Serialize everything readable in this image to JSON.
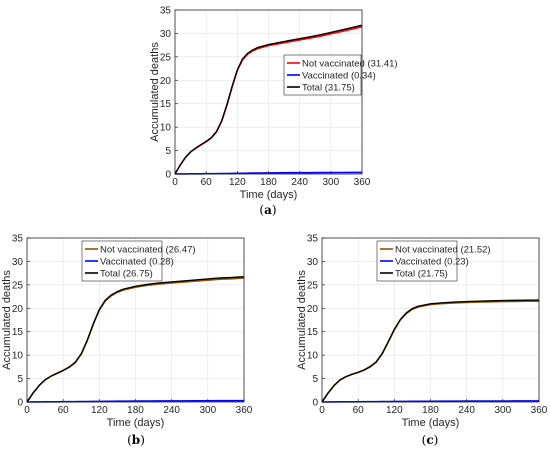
{
  "chart_data": [
    {
      "type": "line",
      "caption": "(a)",
      "xlabel": "Time (days)",
      "ylabel": "Accumulated deaths",
      "xlim": [
        0,
        360
      ],
      "ylim": [
        0,
        35
      ],
      "xticks": [
        0,
        60,
        120,
        180,
        240,
        300,
        360
      ],
      "yticks": [
        0,
        5,
        10,
        15,
        20,
        25,
        30,
        35
      ],
      "grid": true,
      "legend": "middle-right",
      "x": [
        0,
        10,
        20,
        30,
        40,
        50,
        60,
        70,
        80,
        90,
        100,
        110,
        120,
        130,
        140,
        150,
        160,
        180,
        200,
        220,
        240,
        260,
        280,
        300,
        320,
        340,
        360
      ],
      "series": [
        {
          "name": "Not vaccinated (31.41)",
          "color": "#ff0000",
          "values": [
            0,
            1.9,
            3.5,
            4.7,
            5.5,
            6.2,
            6.9,
            7.7,
            9.0,
            11.3,
            14.7,
            18.6,
            22.1,
            24.4,
            25.6,
            26.3,
            26.8,
            27.4,
            27.8,
            28.2,
            28.6,
            29.0,
            29.4,
            29.9,
            30.4,
            30.9,
            31.41
          ]
        },
        {
          "name": "Vaccinated (0.34)",
          "color": "#0000ff",
          "values": [
            0,
            0.01,
            0.02,
            0.03,
            0.04,
            0.05,
            0.06,
            0.07,
            0.08,
            0.09,
            0.1,
            0.12,
            0.14,
            0.16,
            0.18,
            0.2,
            0.21,
            0.23,
            0.25,
            0.27,
            0.28,
            0.29,
            0.3,
            0.31,
            0.32,
            0.33,
            0.34
          ]
        },
        {
          "name": "Total (31.75)",
          "color": "#000000",
          "values": [
            0,
            1.91,
            3.52,
            4.73,
            5.54,
            6.25,
            6.96,
            7.77,
            9.08,
            11.39,
            14.8,
            18.72,
            22.24,
            24.56,
            25.78,
            26.5,
            27.01,
            27.63,
            28.05,
            28.47,
            28.88,
            29.29,
            29.7,
            30.21,
            30.72,
            31.23,
            31.75
          ]
        }
      ]
    },
    {
      "type": "line",
      "caption": "(b)",
      "xlabel": "Time (days)",
      "ylabel": "Accumulated deaths",
      "xlim": [
        0,
        360
      ],
      "ylim": [
        0,
        35
      ],
      "xticks": [
        0,
        60,
        120,
        180,
        240,
        300,
        360
      ],
      "yticks": [
        0,
        5,
        10,
        15,
        20,
        25,
        30,
        35
      ],
      "grid": true,
      "legend": "top-left",
      "x": [
        0,
        10,
        20,
        30,
        40,
        50,
        60,
        70,
        80,
        90,
        100,
        110,
        120,
        130,
        140,
        150,
        160,
        180,
        200,
        220,
        240,
        260,
        280,
        300,
        320,
        340,
        360
      ],
      "series": [
        {
          "name": "Not vaccinated (26.47)",
          "color": "#8b5a00",
          "values": [
            0,
            1.9,
            3.5,
            4.7,
            5.5,
            6.1,
            6.7,
            7.4,
            8.4,
            10.2,
            13.1,
            16.6,
            19.6,
            21.6,
            22.7,
            23.4,
            23.9,
            24.5,
            24.9,
            25.2,
            25.4,
            25.6,
            25.8,
            26.0,
            26.2,
            26.3,
            26.47
          ]
        },
        {
          "name": "Vaccinated (0.28)",
          "color": "#0000ff",
          "values": [
            0,
            0.01,
            0.02,
            0.03,
            0.04,
            0.05,
            0.06,
            0.07,
            0.08,
            0.09,
            0.1,
            0.11,
            0.13,
            0.14,
            0.16,
            0.17,
            0.18,
            0.2,
            0.21,
            0.22,
            0.23,
            0.24,
            0.25,
            0.26,
            0.27,
            0.27,
            0.28
          ]
        },
        {
          "name": "Total (26.75)",
          "color": "#000000",
          "values": [
            0,
            1.91,
            3.52,
            4.73,
            5.54,
            6.15,
            6.76,
            7.47,
            8.48,
            10.29,
            13.2,
            16.71,
            19.73,
            21.74,
            22.86,
            23.57,
            24.08,
            24.7,
            25.11,
            25.42,
            25.63,
            25.84,
            26.05,
            26.26,
            26.47,
            26.57,
            26.75
          ]
        }
      ]
    },
    {
      "type": "line",
      "caption": "(c)",
      "xlabel": "Time (days)",
      "ylabel": "Accumulated deaths",
      "xlim": [
        0,
        360
      ],
      "ylim": [
        0,
        35
      ],
      "xticks": [
        0,
        60,
        120,
        180,
        240,
        300,
        360
      ],
      "yticks": [
        0,
        5,
        10,
        15,
        20,
        25,
        30,
        35
      ],
      "grid": true,
      "legend": "top-left",
      "x": [
        0,
        10,
        20,
        30,
        40,
        50,
        60,
        70,
        80,
        90,
        100,
        110,
        120,
        130,
        140,
        150,
        160,
        180,
        200,
        220,
        240,
        260,
        280,
        300,
        320,
        340,
        360
      ],
      "series": [
        {
          "name": "Not vaccinated (21.52)",
          "color": "#8b5a00",
          "values": [
            0,
            1.9,
            3.5,
            4.7,
            5.4,
            5.9,
            6.3,
            6.8,
            7.5,
            8.5,
            10.3,
            12.8,
            15.4,
            17.5,
            18.9,
            19.8,
            20.3,
            20.8,
            21.0,
            21.15,
            21.25,
            21.32,
            21.38,
            21.43,
            21.47,
            21.5,
            21.52
          ]
        },
        {
          "name": "Vaccinated (0.23)",
          "color": "#0000ff",
          "values": [
            0,
            0.01,
            0.02,
            0.03,
            0.04,
            0.04,
            0.05,
            0.06,
            0.07,
            0.08,
            0.09,
            0.1,
            0.11,
            0.12,
            0.13,
            0.14,
            0.15,
            0.16,
            0.17,
            0.18,
            0.19,
            0.2,
            0.2,
            0.21,
            0.22,
            0.22,
            0.23
          ]
        },
        {
          "name": "Total (21.75)",
          "color": "#000000",
          "values": [
            0,
            1.91,
            3.52,
            4.73,
            5.44,
            5.94,
            6.35,
            6.86,
            7.57,
            8.58,
            10.39,
            12.9,
            15.51,
            17.62,
            19.03,
            19.94,
            20.45,
            20.96,
            21.17,
            21.33,
            21.44,
            21.52,
            21.58,
            21.64,
            21.69,
            21.72,
            21.75
          ]
        }
      ]
    }
  ]
}
